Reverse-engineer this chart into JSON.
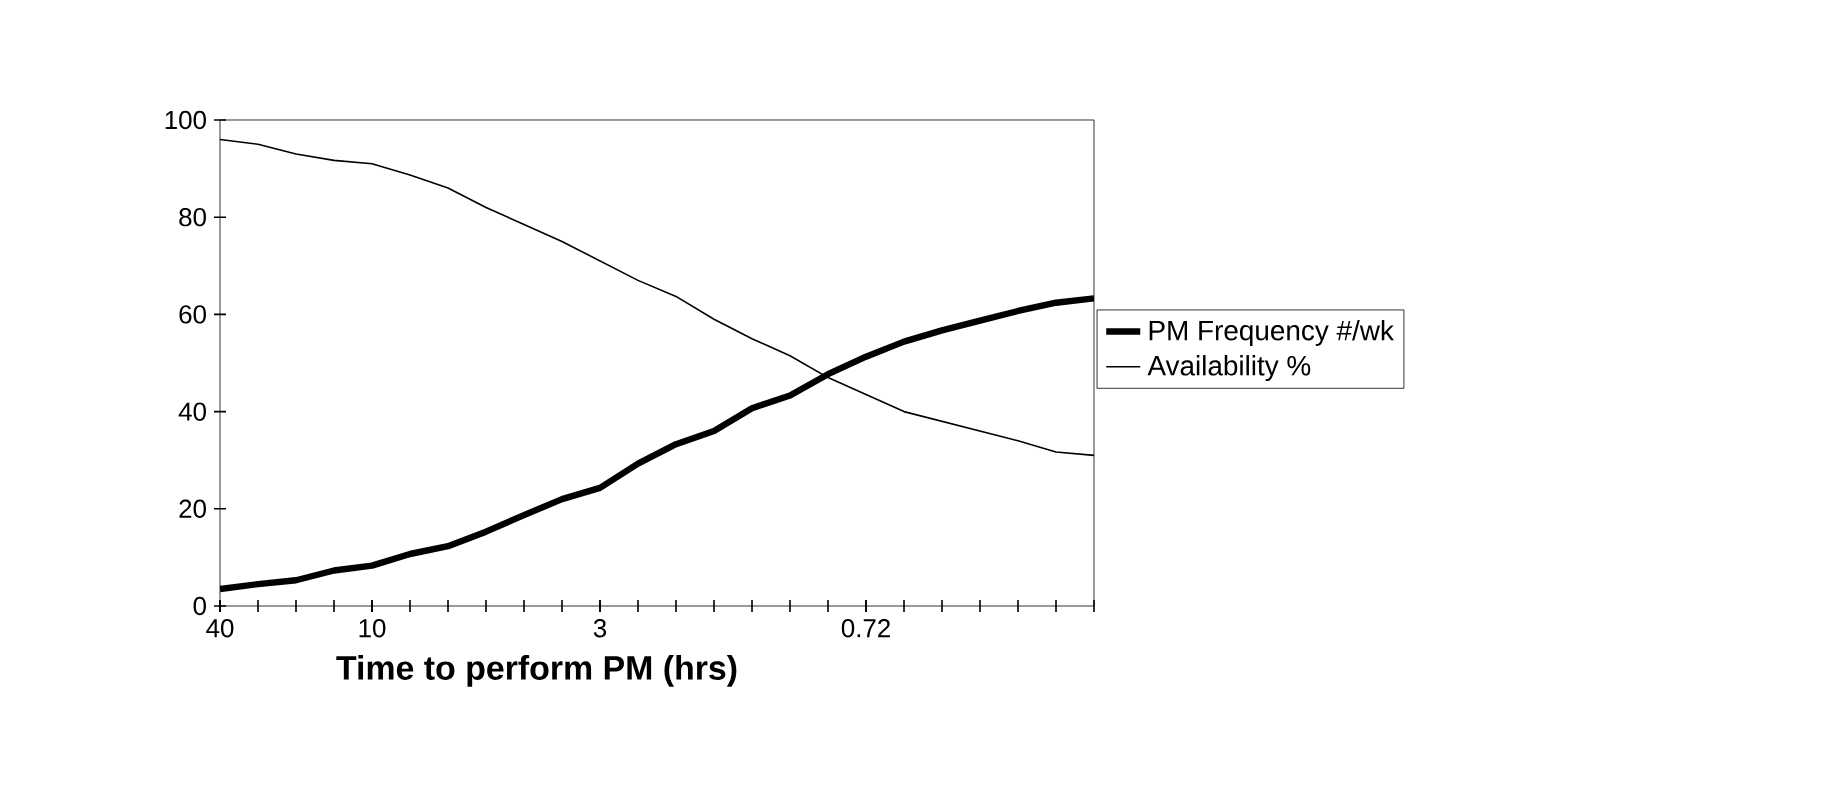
{
  "chart_data": {
    "type": "line",
    "xlabel": "Time to perform PM (hrs)",
    "categories": [
      "40",
      null,
      null,
      null,
      "10",
      null,
      null,
      null,
      null,
      null,
      "3",
      null,
      null,
      null,
      null,
      null,
      null,
      "0.72",
      null,
      null,
      null,
      null,
      null,
      null
    ],
    "series": [
      {
        "name": "PM Frequency #/wk",
        "color": "#000000",
        "values": [
          3.5,
          4.5,
          5.3,
          7.3,
          8.3,
          10.7,
          12.3,
          15.3,
          18.7,
          22,
          24.3,
          29.3,
          33.3,
          36,
          40.7,
          43.3,
          47.7,
          51.3,
          54.4,
          56.7,
          58.7,
          60.7,
          62.4,
          63.3
        ]
      },
      {
        "name": "Availability %",
        "color": "#000000",
        "values": [
          96,
          95,
          93,
          91.7,
          91,
          88.7,
          86,
          82,
          78.5,
          75,
          71,
          67,
          63.7,
          59,
          55,
          51.5,
          47,
          43.5,
          40,
          38,
          36,
          34,
          31.7,
          31
        ]
      }
    ],
    "ylim": [
      0,
      100
    ],
    "yticks": [
      0,
      20,
      40,
      60,
      80,
      100
    ],
    "grid": false,
    "legend": "right",
    "marker": "none",
    "line_style": "solid"
  }
}
